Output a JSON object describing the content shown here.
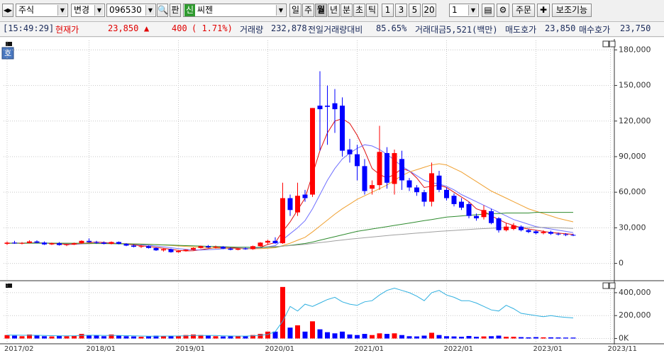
{
  "toolbar": {
    "market": "주식",
    "change": "변경",
    "code": "096530",
    "pan": "판",
    "badge": "신",
    "name": "씨젠",
    "periods": [
      "일",
      "주",
      "월",
      "년",
      "분",
      "초",
      "틱"
    ],
    "intervals": [
      "1",
      "3",
      "5",
      "20"
    ],
    "count": "1",
    "order": "주문",
    "aux": "보조기능"
  },
  "info_bar": {
    "time": "[15:49:29]",
    "price_label": "현재가",
    "price": "23,850",
    "arrow": "▲",
    "change": "400",
    "change_pct": "( 1.71%)",
    "volume_label": "거래량",
    "volume": "232,878",
    "prev_ratio_label": "전일거래량대비",
    "prev_ratio": "85.65%",
    "amount_label": "거래대금",
    "amount": "5,521(백만)",
    "ask_label": "매도호가",
    "ask": "23,850",
    "bid_label": "매수호가",
    "bid": "23,750"
  },
  "chart_button": "호",
  "chart_data": {
    "type": "candlestick",
    "categories": [
      "2017/02",
      null,
      null,
      null,
      null,
      null,
      null,
      null,
      null,
      null,
      null,
      "2018/01",
      null,
      null,
      null,
      null,
      null,
      null,
      null,
      null,
      null,
      null,
      null,
      "2019/01",
      null,
      null,
      null,
      null,
      null,
      null,
      null,
      null,
      null,
      null,
      null,
      "2020/01",
      null,
      null,
      null,
      null,
      null,
      null,
      null,
      null,
      null,
      null,
      null,
      "2021/01",
      null,
      null,
      null,
      null,
      null,
      null,
      null,
      null,
      null,
      null,
      null,
      "2022/01",
      null,
      null,
      null,
      null,
      null,
      null,
      null,
      null,
      null,
      null,
      null,
      "2023/01",
      null,
      null,
      null,
      null,
      null,
      null,
      null,
      null,
      null,
      "2023/11"
    ],
    "open": [
      16500,
      17500,
      16800,
      17200,
      18500,
      17500,
      16000,
      17000,
      15500,
      16000,
      17000,
      19000,
      18000,
      17500,
      16500,
      18000,
      16500,
      15000,
      14000,
      14500,
      13000,
      11000,
      12000,
      9500,
      10500,
      11500,
      13000,
      14500,
      13500,
      14000,
      12500,
      11500,
      12500,
      12000,
      14500,
      17500,
      19000,
      17000,
      55000,
      43000,
      58000,
      58000,
      133000,
      133000,
      135000,
      133000,
      96000,
      92000,
      82000,
      63000,
      66000,
      93000,
      67000,
      88000,
      70000,
      64000,
      60000,
      52000,
      74000,
      62000,
      57000,
      52000,
      50000,
      40000,
      39000,
      44000,
      38000,
      28000,
      29000,
      31000,
      28000,
      27000,
      25500,
      26500,
      25000,
      24500,
      24000,
      null,
      null,
      null,
      null,
      null
    ],
    "high": [
      18500,
      19000,
      18000,
      19500,
      19500,
      18500,
      17500,
      18000,
      16500,
      17500,
      19500,
      21000,
      19000,
      18500,
      18500,
      18500,
      17000,
      16000,
      15500,
      15000,
      13500,
      12500,
      12500,
      11000,
      12000,
      13500,
      15000,
      15500,
      15000,
      14500,
      13500,
      13000,
      13500,
      15000,
      18000,
      20000,
      22000,
      68000,
      58000,
      68000,
      62000,
      131000,
      162000,
      150000,
      147000,
      140000,
      105000,
      100000,
      88000,
      70000,
      116000,
      98000,
      96000,
      95000,
      72000,
      66000,
      62000,
      85000,
      78000,
      64000,
      59000,
      55000,
      52000,
      42000,
      49000,
      46000,
      39000,
      34000,
      34000,
      32000,
      29000,
      28000,
      28000,
      27500,
      26000,
      25500,
      25000,
      null,
      null,
      null,
      null,
      null
    ],
    "low": [
      15500,
      16500,
      16000,
      16800,
      17000,
      15500,
      15500,
      15000,
      14500,
      15500,
      16500,
      17500,
      16500,
      16000,
      16000,
      16000,
      14500,
      13500,
      13000,
      12500,
      10500,
      10000,
      9000,
      9000,
      10000,
      11000,
      12500,
      13000,
      12500,
      12000,
      11000,
      11000,
      11500,
      11500,
      14000,
      16000,
      16500,
      16500,
      40000,
      40000,
      52000,
      56000,
      95000,
      100000,
      110000,
      90000,
      85000,
      70000,
      58000,
      58000,
      62000,
      63000,
      58000,
      62000,
      61000,
      57000,
      48000,
      48000,
      60000,
      53000,
      48000,
      45000,
      38000,
      36000,
      37000,
      33000,
      26000,
      27000,
      28000,
      27000,
      25500,
      24500,
      24500,
      24000,
      23500,
      23000,
      23000,
      null,
      null,
      null,
      null,
      null
    ],
    "close": [
      17500,
      16800,
      17200,
      18500,
      17500,
      16000,
      17000,
      15500,
      16000,
      17000,
      19000,
      18000,
      17500,
      16500,
      18000,
      16500,
      15000,
      14000,
      14500,
      13000,
      11000,
      12000,
      9500,
      10500,
      11500,
      13000,
      14500,
      13500,
      14000,
      12500,
      11500,
      12500,
      12000,
      14500,
      17500,
      19000,
      17000,
      55000,
      45000,
      57000,
      55000,
      131000,
      130000,
      132000,
      130000,
      95000,
      92000,
      82000,
      61000,
      66000,
      94000,
      68000,
      93000,
      70000,
      64000,
      60000,
      52000,
      76000,
      62000,
      55000,
      50000,
      47000,
      40000,
      38000,
      45000,
      34000,
      28000,
      31000,
      32000,
      28000,
      26500,
      25500,
      26500,
      25000,
      24500,
      24000,
      23850,
      null,
      null,
      null,
      null,
      null
    ],
    "up_color": "#ff0000",
    "down_color": "#0000ff",
    "ylim": [
      -14000,
      188000
    ],
    "yticks": [
      0,
      {
        "value": 30000,
        "label": "30,000"
      },
      {
        "value": 60000,
        "label": "60,000"
      },
      {
        "value": 90000,
        "label": "90,000"
      },
      {
        "value": 120000,
        "label": "120,000"
      },
      {
        "value": 150000,
        "label": "150,000"
      },
      {
        "value": 180000,
        "label": "180,000"
      }
    ],
    "grid": true,
    "ma": [
      {
        "color": "#e01010",
        "values": [
          17000,
          17200,
          17100,
          17300,
          17500,
          17200,
          16800,
          16500,
          16000,
          16000,
          16500,
          17500,
          18000,
          17600,
          17200,
          16800,
          16300,
          15600,
          14800,
          14300,
          13500,
          12800,
          11800,
          11000,
          10500,
          10700,
          11500,
          12500,
          13300,
          13600,
          13400,
          13000,
          12600,
          12500,
          13500,
          16000,
          17500,
          27000,
          35000,
          45000,
          55000,
          75000,
          95000,
          110000,
          120000,
          122000,
          118000,
          108000,
          95000,
          80000,
          75000,
          72000,
          75000,
          80000,
          78000,
          72000,
          64000,
          65000,
          66000,
          64000,
          60000,
          56000,
          52000,
          46000,
          44000,
          40000,
          37000,
          34000,
          32000,
          30000,
          29000,
          28000,
          27000,
          26000,
          25500,
          25000,
          24500,
          null,
          null,
          null,
          null,
          null
        ]
      },
      {
        "color": "#7070ff",
        "values": [
          17000,
          17100,
          17100,
          17200,
          17300,
          17300,
          17100,
          16900,
          16600,
          16400,
          16400,
          16600,
          16900,
          17000,
          17000,
          16900,
          16600,
          16200,
          15700,
          15200,
          14600,
          13900,
          13200,
          12500,
          11800,
          11400,
          11300,
          11500,
          11900,
          12300,
          12600,
          12800,
          12800,
          12700,
          13000,
          14000,
          15000,
          20000,
          25000,
          30000,
          36000,
          46000,
          58000,
          70000,
          80000,
          88000,
          93000,
          97000,
          100000,
          99000,
          96000,
          92000,
          87000,
          82000,
          78000,
          74000,
          70000,
          68000,
          67000,
          65000,
          62000,
          58000,
          55000,
          52000,
          49000,
          46000,
          43000,
          40000,
          37000,
          35000,
          33000,
          31000,
          30000,
          29000,
          28000,
          27000,
          26000,
          null,
          null,
          null,
          null,
          null
        ]
      },
      {
        "color": "#f0a030",
        "values": [
          17000,
          17000,
          17000,
          17100,
          17100,
          17100,
          17100,
          17000,
          16900,
          16800,
          16700,
          16700,
          16700,
          16700,
          16700,
          16700,
          16600,
          16500,
          16300,
          16100,
          15800,
          15500,
          15100,
          14700,
          14300,
          13900,
          13500,
          13200,
          12900,
          12700,
          12500,
          12400,
          12300,
          12300,
          12400,
          12800,
          13200,
          15000,
          17000,
          19500,
          22000,
          26500,
          31500,
          36500,
          41500,
          46000,
          50000,
          54000,
          57000,
          60000,
          63000,
          66000,
          70000,
          74000,
          77000,
          79000,
          81000,
          83000,
          84000,
          83000,
          80000,
          77000,
          73000,
          69000,
          65000,
          61000,
          58000,
          55000,
          52000,
          49000,
          46000,
          44000,
          42000,
          40000,
          38000,
          36500,
          35000,
          null,
          null,
          null,
          null,
          null
        ]
      },
      {
        "color": "#2e8b2e",
        "values": [
          17000,
          17000,
          17000,
          17000,
          17000,
          17000,
          17000,
          17000,
          17000,
          17000,
          17000,
          17000,
          16800,
          16700,
          16600,
          16500,
          16400,
          16300,
          16200,
          16000,
          15800,
          15600,
          15400,
          15200,
          15000,
          14800,
          14600,
          14400,
          14200,
          14000,
          13800,
          13700,
          13600,
          13500,
          13500,
          13600,
          13800,
          14500,
          15200,
          16000,
          16800,
          18000,
          19500,
          21000,
          22500,
          24000,
          25500,
          27000,
          28000,
          29000,
          30000,
          31000,
          32000,
          33000,
          34000,
          35000,
          36000,
          37000,
          38000,
          39000,
          39500,
          40000,
          40500,
          41000,
          41500,
          42000,
          42000,
          42500,
          42500,
          42500,
          42500,
          43000,
          43000,
          43000,
          43000,
          43000,
          43000,
          null,
          null,
          null,
          null,
          null
        ]
      },
      {
        "color": "#a0a0a0",
        "values": [
          null,
          null,
          null,
          null,
          null,
          null,
          null,
          null,
          null,
          null,
          null,
          null,
          null,
          null,
          null,
          null,
          null,
          null,
          null,
          null,
          null,
          null,
          null,
          null,
          null,
          null,
          null,
          null,
          null,
          null,
          null,
          null,
          null,
          null,
          null,
          14000,
          14200,
          14500,
          15000,
          15500,
          16000,
          16800,
          17500,
          18200,
          19000,
          19700,
          20400,
          21000,
          21600,
          22200,
          22800,
          23400,
          24000,
          24500,
          25000,
          25500,
          26000,
          26500,
          27000,
          27400,
          27800,
          28200,
          28600,
          29000,
          29300,
          29600,
          29900,
          30100,
          30300,
          30400,
          30400,
          30400,
          30300,
          30200,
          30000,
          29800,
          29500,
          null,
          null,
          null,
          null,
          null
        ]
      }
    ],
    "volume": {
      "values": [
        30000,
        25000,
        20000,
        35000,
        25000,
        20000,
        18000,
        22000,
        20000,
        25000,
        40000,
        30000,
        25000,
        20000,
        35000,
        25000,
        20000,
        18000,
        15000,
        20000,
        25000,
        20000,
        22000,
        25000,
        30000,
        35000,
        30000,
        25000,
        20000,
        18000,
        20000,
        22000,
        20000,
        30000,
        40000,
        60000,
        60000,
        450000,
        95000,
        115000,
        60000,
        150000,
        80000,
        55000,
        45000,
        60000,
        35000,
        30000,
        40000,
        30000,
        45000,
        40000,
        45000,
        30000,
        20000,
        18000,
        25000,
        50000,
        30000,
        20000,
        18000,
        15000,
        22000,
        15000,
        18000,
        20000,
        25000,
        15000,
        15000,
        12000,
        10000,
        12000,
        10000,
        10000,
        9000,
        8000,
        8000,
        null,
        null,
        null,
        null,
        null
      ],
      "ma": {
        "color": "#30b0e0",
        "values": [
          30000,
          30000,
          28000,
          28000,
          28000,
          27000,
          25000,
          24000,
          23000,
          24000,
          26000,
          28000,
          28000,
          27000,
          27000,
          26000,
          25000,
          24000,
          22000,
          20000,
          20000,
          21000,
          22000,
          22000,
          24000,
          26000,
          27000,
          27000,
          26000,
          24000,
          22000,
          21000,
          21000,
          24000,
          28000,
          35000,
          60000,
          150000,
          280000,
          240000,
          300000,
          280000,
          310000,
          340000,
          360000,
          320000,
          300000,
          290000,
          320000,
          330000,
          380000,
          420000,
          440000,
          420000,
          400000,
          370000,
          330000,
          400000,
          420000,
          380000,
          360000,
          330000,
          330000,
          310000,
          280000,
          250000,
          240000,
          290000,
          260000,
          220000,
          210000,
          200000,
          190000,
          200000,
          190000,
          185000,
          180000,
          null,
          null,
          null,
          null,
          null
        ]
      },
      "ylim": [
        -40000,
        480000
      ],
      "yticks": [
        {
          "value": 0,
          "label": "0K"
        },
        {
          "value": 200000,
          "label": "200,000"
        },
        {
          "value": 400000,
          "label": "400,000"
        }
      ]
    }
  }
}
